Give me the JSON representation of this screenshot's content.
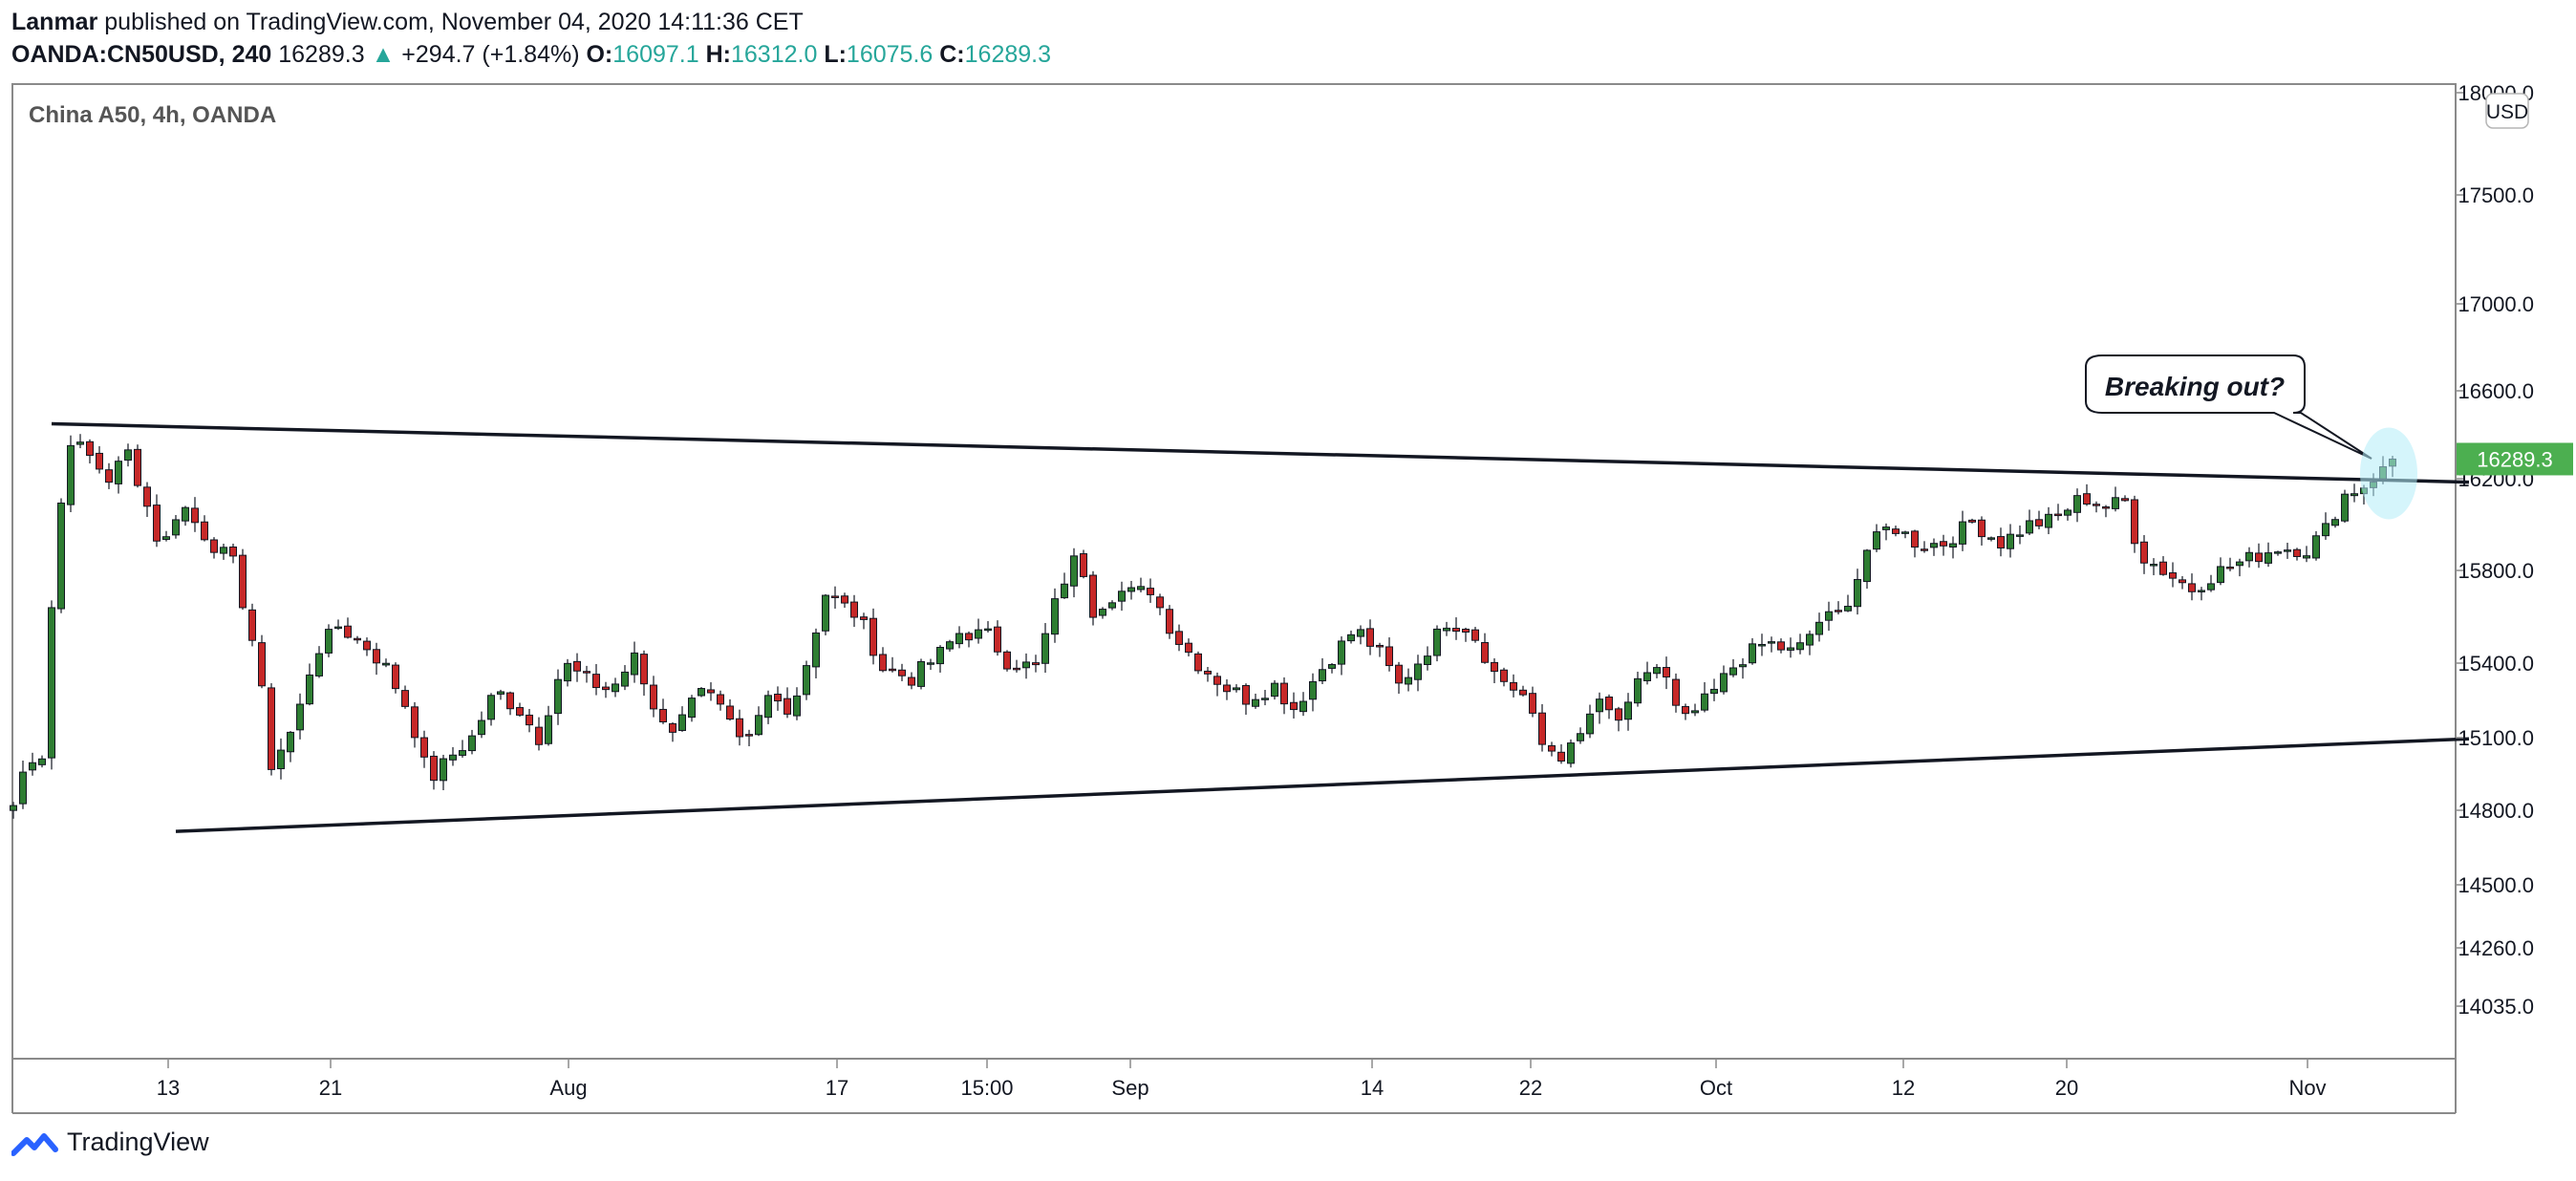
{
  "header": {
    "author": "Lanmar",
    "published": "published on TradingView.com, November 04, 2020 14:11:36 CET",
    "symbol": "OANDA:CN50USD, 240",
    "last": "16289.3",
    "change_arrow": "▲",
    "change": "+294.7 (+1.84%)",
    "o_label": "O:",
    "o_value": "16097.1",
    "h_label": "H:",
    "h_value": "16312.0",
    "l_label": "L:",
    "l_value": "16075.6",
    "c_label": "C:",
    "c_value": "16289.3"
  },
  "chart_title": "China A50, 4h, OANDA",
  "currency_badge": "USD",
  "price_tag": "16289.3",
  "annotation": "Breaking out?",
  "footer": {
    "brand": "TradingView",
    "logo_icon": "tradingview-logo-icon"
  },
  "colors": {
    "up": "#26a69a",
    "candle_up": "#2e7d32",
    "candle_down": "#c62828",
    "price_tag": "#4caf50",
    "highlight": "#b3ecf7"
  },
  "chart_data": {
    "type": "candlestick",
    "title": "China A50, 4h, OANDA",
    "xlabel": "",
    "ylabel": "",
    "ylim": [
      13900,
      18050
    ],
    "y_ticks": [
      "18000.0",
      "17500.0",
      "17000.0",
      "16600.0",
      "16200.0",
      "15800.0",
      "15400.0",
      "15100.0",
      "14800.0",
      "14500.0",
      "14260.0",
      "14035.0"
    ],
    "x_ticks": [
      "13",
      "21",
      "Aug",
      "17",
      "15:00",
      "Sep",
      "14",
      "22",
      "Oct",
      "12",
      "20",
      "Nov"
    ],
    "last_price": 16289.3,
    "path": [
      [
        0,
        14820
      ],
      [
        1.5,
        15020
      ],
      [
        3,
        15030
      ],
      [
        4.5,
        15950
      ],
      [
        6,
        16380
      ],
      [
        8,
        16300
      ],
      [
        10,
        16200
      ],
      [
        12,
        16320
      ],
      [
        14,
        16080
      ],
      [
        15.5,
        15880
      ],
      [
        17.5,
        16100
      ],
      [
        19.5,
        15980
      ],
      [
        21,
        15910
      ],
      [
        23,
        15830
      ],
      [
        25.5,
        15420
      ],
      [
        27,
        14990
      ],
      [
        29.5,
        15150
      ],
      [
        31.5,
        15440
      ],
      [
        34,
        15560
      ],
      [
        37,
        15470
      ],
      [
        39,
        15380
      ],
      [
        41.5,
        15200
      ],
      [
        43.5,
        14920
      ],
      [
        46,
        15030
      ],
      [
        48,
        15100
      ],
      [
        50.5,
        15290
      ],
      [
        53,
        15210
      ],
      [
        55,
        15100
      ],
      [
        57.5,
        15400
      ],
      [
        60,
        15330
      ],
      [
        62.5,
        15290
      ],
      [
        65,
        15420
      ],
      [
        67,
        15220
      ],
      [
        69.5,
        15120
      ],
      [
        71.5,
        15340
      ],
      [
        74,
        15210
      ],
      [
        76.5,
        15040
      ],
      [
        79,
        15260
      ],
      [
        81.5,
        15220
      ],
      [
        83,
        15400
      ],
      [
        85,
        15700
      ],
      [
        88.5,
        15600
      ],
      [
        91,
        15380
      ],
      [
        94,
        15340
      ],
      [
        96.5,
        15420
      ],
      [
        99,
        15530
      ],
      [
        102,
        15520
      ],
      [
        104,
        15410
      ],
      [
        107,
        15380
      ],
      [
        109.5,
        15720
      ],
      [
        111.5,
        15880
      ],
      [
        113,
        15630
      ],
      [
        115.5,
        15710
      ],
      [
        117.5,
        15700
      ],
      [
        119,
        15720
      ],
      [
        121.5,
        15520
      ],
      [
        124,
        15400
      ],
      [
        127,
        15300
      ],
      [
        129,
        15260
      ],
      [
        132,
        15310
      ],
      [
        134,
        15220
      ],
      [
        137,
        15380
      ],
      [
        140.5,
        15550
      ],
      [
        143,
        15440
      ],
      [
        145,
        15310
      ],
      [
        147.5,
        15430
      ],
      [
        150,
        15580
      ],
      [
        152.5,
        15550
      ],
      [
        155,
        15360
      ],
      [
        158,
        15270
      ],
      [
        160,
        15070
      ],
      [
        162,
        15030
      ],
      [
        163.5,
        15060
      ],
      [
        165.5,
        15240
      ],
      [
        168.5,
        15160
      ],
      [
        170.5,
        15360
      ],
      [
        172.5,
        15390
      ],
      [
        174.5,
        15150
      ],
      [
        177.5,
        15260
      ],
      [
        180.5,
        15410
      ],
      [
        183.5,
        15490
      ],
      [
        186.5,
        15440
      ],
      [
        189,
        15580
      ],
      [
        191,
        15610
      ],
      [
        192.5,
        15710
      ],
      [
        194,
        15890
      ],
      [
        196.5,
        16000
      ],
      [
        199.5,
        15910
      ],
      [
        202,
        15920
      ],
      [
        205,
        16010
      ],
      [
        208,
        15920
      ],
      [
        211,
        16000
      ],
      [
        213.5,
        16020
      ],
      [
        216.5,
        16120
      ],
      [
        219,
        16080
      ],
      [
        221,
        16100
      ],
      [
        222.5,
        15870
      ],
      [
        225,
        15800
      ],
      [
        228,
        15720
      ],
      [
        231,
        15800
      ],
      [
        234,
        15850
      ],
      [
        237,
        15900
      ],
      [
        240,
        15890
      ],
      [
        242,
        15980
      ],
      [
        244,
        16130
      ],
      [
        246,
        16170
      ],
      [
        249.5,
        16289
      ]
    ],
    "trendlines": [
      {
        "name": "resistance",
        "x": [
          4,
          257
        ],
        "y": [
          16450,
          16185
        ]
      },
      {
        "name": "support",
        "x": [
          17,
          257
        ],
        "y": [
          14715,
          15095
        ]
      }
    ]
  }
}
